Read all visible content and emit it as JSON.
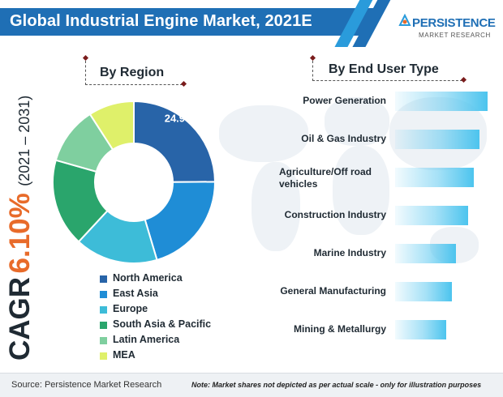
{
  "header": {
    "title": "Global Industrial Engine Market, 2021E",
    "colors": {
      "band": "#1f6fb5",
      "accent": "#2a9bdb"
    }
  },
  "logo": {
    "name": "PERSISTENCE",
    "sub": "MARKET RESEARCH"
  },
  "cagr": {
    "label": "CAGR",
    "value": "6.10%",
    "period": "(2021 – 2031)"
  },
  "chart_data": [
    {
      "type": "pie",
      "title": "By Region",
      "donut": true,
      "categories": [
        "North America",
        "East Asia",
        "Europe",
        "South Asia & Pacific",
        "Latin America",
        "MEA"
      ],
      "values": [
        24.9,
        20.5,
        16.5,
        17.5,
        11.5,
        9.1
      ],
      "colors": [
        "#2864a8",
        "#1f8dd6",
        "#3dbcd8",
        "#2aa56c",
        "#7fcf9f",
        "#dff06a"
      ],
      "data_labels": [
        "24.9%",
        "",
        "",
        "",
        "",
        ""
      ],
      "legend_position": "bottom-right"
    },
    {
      "type": "bar",
      "orientation": "horizontal",
      "title": "By End User Type",
      "categories": [
        "Power Generation",
        "Oil & Gas Industry",
        "Agriculture/Off road vehicles",
        "Construction Industry",
        "Marine Industry",
        "General Manufacturing",
        "Mining & Metallurgy"
      ],
      "values": [
        100,
        91,
        85,
        79,
        66,
        61,
        55
      ],
      "value_axis_shown": false
    }
  ],
  "footer": {
    "source": "Source: Persistence Market Research",
    "note": "Note: Market shares not depicted as per actual scale - only for illustration purposes"
  }
}
